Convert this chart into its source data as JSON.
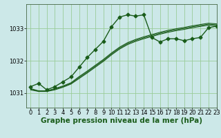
{
  "title": "Graphe pression niveau de la mer (hPa)",
  "bg_color": "#cce8e8",
  "grid_color": "#99cc99",
  "line_color": "#1a5c1a",
  "xlim": [
    -0.5,
    23
  ],
  "ylim": [
    1030.55,
    1033.75
  ],
  "yticks": [
    1031,
    1032,
    1033
  ],
  "xticks": [
    0,
    1,
    2,
    3,
    4,
    5,
    6,
    7,
    8,
    9,
    10,
    11,
    12,
    13,
    14,
    15,
    16,
    17,
    18,
    19,
    20,
    21,
    22,
    23
  ],
  "tick_labels": [
    "0",
    "1",
    "2",
    "3",
    "4",
    "5",
    "6",
    "7",
    "8",
    "9",
    "10",
    "11",
    "12",
    "13",
    "14",
    "15",
    "16",
    "17",
    "18",
    "19",
    "20",
    "21",
    "22",
    "23"
  ],
  "series_main": [
    1031.2,
    1031.3,
    1031.1,
    1031.2,
    1031.35,
    1031.5,
    1031.8,
    1032.1,
    1032.35,
    1032.6,
    1033.05,
    1033.35,
    1033.42,
    1033.38,
    1033.42,
    1032.72,
    1032.58,
    1032.68,
    1032.68,
    1032.62,
    1032.68,
    1032.72,
    1033.02,
    1033.07
  ],
  "series_smooth": [
    [
      1031.1,
      1031.05,
      1031.05,
      1031.1,
      1031.18,
      1031.28,
      1031.45,
      1031.62,
      1031.8,
      1031.98,
      1032.18,
      1032.36,
      1032.5,
      1032.6,
      1032.68,
      1032.75,
      1032.82,
      1032.88,
      1032.93,
      1032.97,
      1033.02,
      1033.06,
      1033.1,
      1033.08
    ],
    [
      1031.12,
      1031.06,
      1031.06,
      1031.12,
      1031.2,
      1031.3,
      1031.48,
      1031.65,
      1031.83,
      1032.01,
      1032.21,
      1032.39,
      1032.53,
      1032.63,
      1032.71,
      1032.78,
      1032.85,
      1032.91,
      1032.96,
      1033.0,
      1033.05,
      1033.09,
      1033.13,
      1033.11
    ],
    [
      1031.14,
      1031.07,
      1031.07,
      1031.14,
      1031.22,
      1031.32,
      1031.51,
      1031.68,
      1031.86,
      1032.04,
      1032.24,
      1032.42,
      1032.56,
      1032.66,
      1032.74,
      1032.81,
      1032.88,
      1032.94,
      1032.99,
      1033.03,
      1033.08,
      1033.12,
      1033.16,
      1033.14
    ]
  ],
  "marker": "D",
  "marker_size": 2.5,
  "fontsize_title": 7.5,
  "fontsize_ticks": 6.0,
  "lw_main": 1.0,
  "lw_smooth": 0.8
}
